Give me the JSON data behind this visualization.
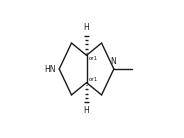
{
  "bg_color": "#ffffff",
  "line_color": "#1a1a1a",
  "text_color": "#1a1a1a",
  "figsize": [
    1.84,
    1.38
  ],
  "dpi": 100,
  "NH_label": "HN",
  "N_label": "N",
  "or1_label": "or1",
  "H_label": "H",
  "n_hash": 5,
  "lw": 1.0,
  "fs_main": 5.5,
  "fs_or": 4.0
}
